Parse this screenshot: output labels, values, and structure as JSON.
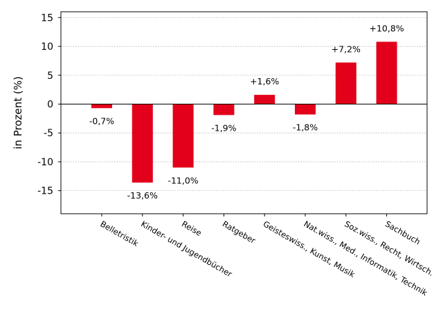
{
  "chart_data": {
    "type": "bar",
    "title": "",
    "xlabel": "",
    "ylabel": "in Prozent (%)",
    "ylim": [
      -19,
      16
    ],
    "yticks": [
      -15,
      -10,
      -5,
      0,
      5,
      10,
      15
    ],
    "ytick_labels": [
      "-15",
      "-10",
      "-5",
      "0",
      "5",
      "10",
      "15"
    ],
    "grid": "horizontal dotted",
    "bar_color": "#e2001a",
    "categories": [
      "Belletristik",
      "Kinder- und Jugendbücher",
      "Reise",
      "Ratgeber",
      "Geisteswiss., Kunst, Musik",
      "Nat.wiss., Med., Informatik, Technik",
      "Soz.wiss., Recht, Wirtsch.",
      "Sachbuch"
    ],
    "values": [
      -0.7,
      -13.6,
      -11.0,
      -1.9,
      1.6,
      -1.8,
      7.2,
      10.8
    ],
    "data_labels": [
      "-0,7%",
      "-13,6%",
      "-11,0%",
      "-1,9%",
      "+1,6%",
      "-1,8%",
      "+7,2%",
      "+10,8%"
    ]
  }
}
